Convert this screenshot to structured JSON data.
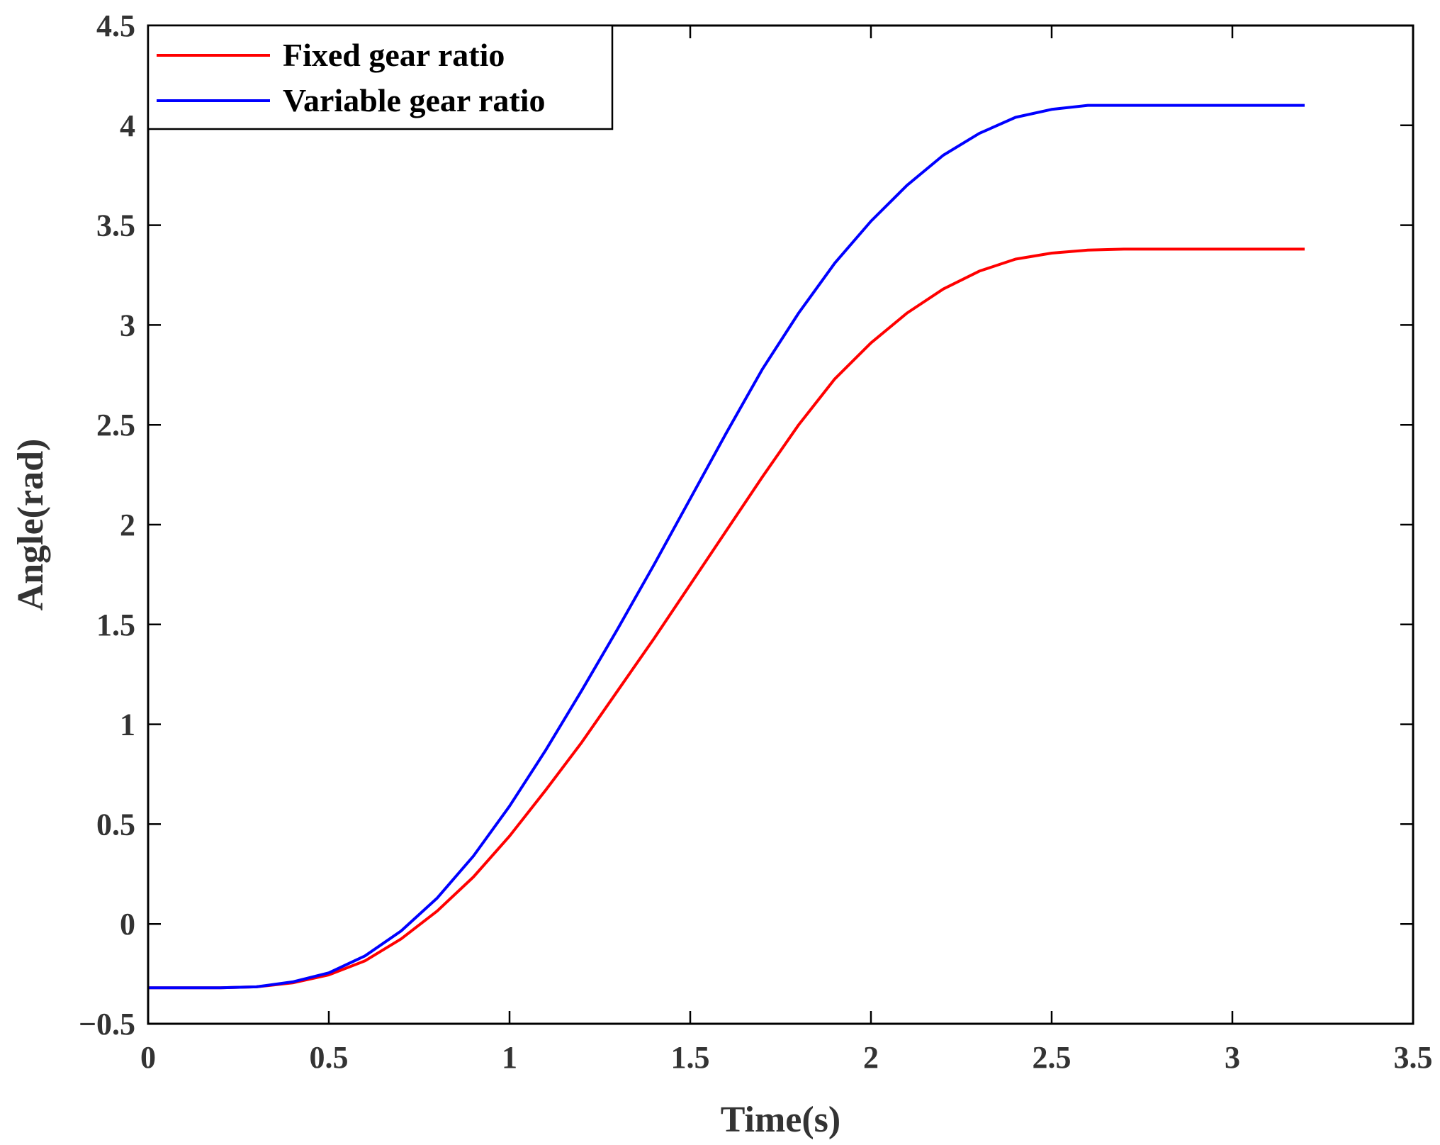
{
  "chart_data": {
    "type": "line",
    "title": "",
    "xlabel": "Time(s)",
    "ylabel": "Angle(rad)",
    "xlim": [
      0,
      3.5
    ],
    "ylim": [
      -0.5,
      4.5
    ],
    "grid": false,
    "legend_position": "top-left",
    "x_ticks": [
      0,
      0.5,
      1,
      1.5,
      2,
      2.5,
      3,
      3.5
    ],
    "x_tick_labels": [
      "0",
      "0.5",
      "1",
      "1.5",
      "2",
      "2.5",
      "3",
      "3.5"
    ],
    "y_ticks": [
      -0.5,
      0,
      0.5,
      1,
      1.5,
      2,
      2.5,
      3,
      3.5,
      4,
      4.5
    ],
    "y_tick_labels": [
      "−0.5",
      "0",
      "0.5",
      "1",
      "1.5",
      "2",
      "2.5",
      "3",
      "3.5",
      "4",
      "4.5"
    ],
    "x": [
      0,
      0.1,
      0.2,
      0.3,
      0.4,
      0.5,
      0.6,
      0.7,
      0.8,
      0.9,
      1.0,
      1.1,
      1.2,
      1.3,
      1.4,
      1.5,
      1.6,
      1.7,
      1.8,
      1.9,
      2.0,
      2.1,
      2.2,
      2.3,
      2.4,
      2.5,
      2.6,
      2.7,
      2.8,
      2.9,
      3.0,
      3.1,
      3.2
    ],
    "series": [
      {
        "name": "Fixed gear ratio",
        "color": "#ff0000",
        "values": [
          -0.32,
          -0.32,
          -0.32,
          -0.315,
          -0.295,
          -0.255,
          -0.185,
          -0.075,
          0.065,
          0.235,
          0.44,
          0.67,
          0.91,
          1.17,
          1.43,
          1.7,
          1.97,
          2.24,
          2.5,
          2.73,
          2.91,
          3.06,
          3.18,
          3.27,
          3.33,
          3.36,
          3.375,
          3.38,
          3.38,
          3.38,
          3.38,
          3.38,
          3.38
        ]
      },
      {
        "name": "Variable gear ratio",
        "color": "#0000ff",
        "values": [
          -0.32,
          -0.32,
          -0.32,
          -0.315,
          -0.29,
          -0.245,
          -0.16,
          -0.035,
          0.13,
          0.34,
          0.59,
          0.87,
          1.17,
          1.48,
          1.8,
          2.13,
          2.46,
          2.78,
          3.06,
          3.31,
          3.52,
          3.7,
          3.85,
          3.96,
          4.04,
          4.08,
          4.1,
          4.1,
          4.1,
          4.1,
          4.1,
          4.1,
          4.1
        ]
      }
    ]
  }
}
